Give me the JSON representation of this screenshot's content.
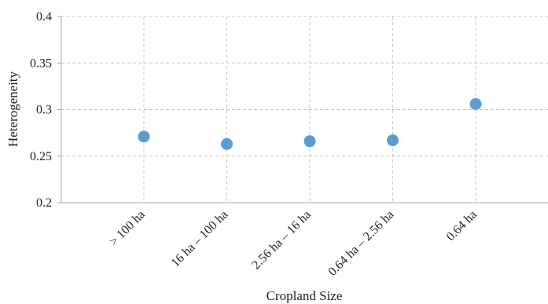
{
  "chart_data": {
    "type": "scatter",
    "title": "",
    "xlabel": "Cropland Size",
    "ylabel": "Heterogeneity",
    "categories": [
      "> 100 ha",
      "16 ha – 100 ha",
      "2.56 ha – 16 ha",
      "0.64 ha – 2.56 ha",
      "0.64 ha"
    ],
    "series": [
      {
        "values": [
          0.271,
          0.263,
          0.266,
          0.267,
          0.306
        ]
      }
    ],
    "ylim": [
      0.2,
      0.4
    ],
    "yticks": [
      "0.2",
      "0.25",
      "0.3",
      "0.35",
      "0.4"
    ],
    "grid": true,
    "legend": "none",
    "colors": {
      "marker": "#5b9bd5",
      "grid": "#c8c8c8",
      "axis": "#a6a6a6"
    }
  }
}
